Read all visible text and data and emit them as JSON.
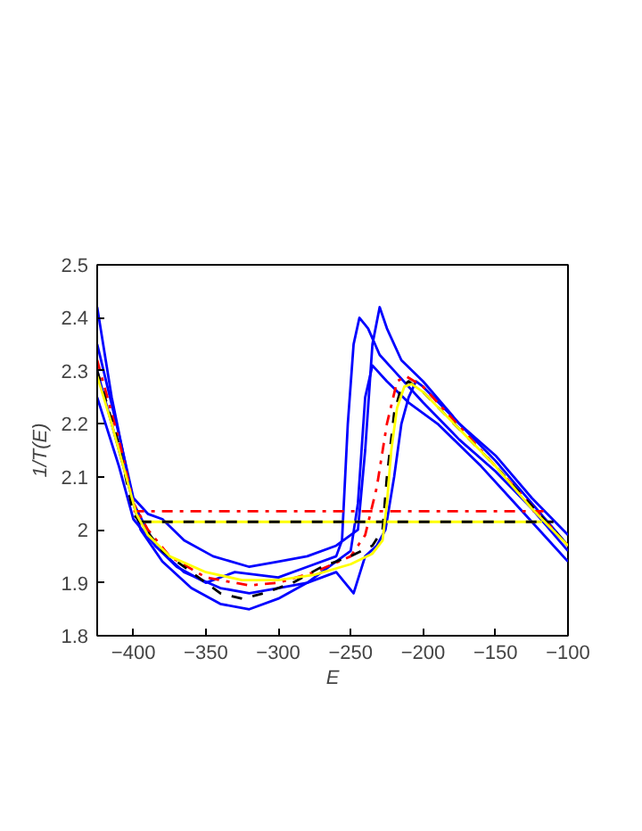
{
  "chart_data": {
    "type": "line",
    "xlabel": "E",
    "ylabel": "1/T(E)",
    "xlim": [
      -425,
      -100
    ],
    "ylim": [
      1.8,
      2.5
    ],
    "xticks": [
      {
        "value": -400,
        "label": "−400"
      },
      {
        "value": -350,
        "label": "−350"
      },
      {
        "value": -300,
        "label": "−300"
      },
      {
        "value": -250,
        "label": "−250"
      },
      {
        "value": -200,
        "label": "−200"
      },
      {
        "value": -150,
        "label": "−150"
      },
      {
        "value": -100,
        "label": "−100"
      }
    ],
    "yticks": [
      1.8,
      1.9,
      2,
      2.1,
      2.2,
      2.3,
      2.4,
      2.5
    ],
    "grid": false,
    "marker": "none",
    "series": [
      {
        "color": "#0000ff",
        "line_style": "solid",
        "x": [
          -425,
          -415,
          -400,
          -385,
          -370,
          -350,
          -330,
          -300,
          -280,
          -260,
          -256,
          -252,
          -248,
          -244,
          -238,
          -230,
          -220,
          -200,
          -175,
          -150,
          -125,
          -100
        ],
        "values": [
          2.42,
          2.25,
          2.05,
          1.97,
          1.93,
          1.9,
          1.92,
          1.91,
          1.93,
          1.95,
          1.98,
          2.2,
          2.35,
          2.4,
          2.38,
          2.33,
          2.3,
          2.24,
          2.17,
          2.11,
          2.04,
          1.96
        ]
      },
      {
        "color": "#0000ff",
        "line_style": "solid",
        "x": [
          -425,
          -410,
          -395,
          -380,
          -360,
          -340,
          -320,
          -300,
          -280,
          -260,
          -248,
          -240,
          -232,
          -226,
          -220,
          -215,
          -210,
          -205,
          -200,
          -175,
          -150,
          -125,
          -100
        ],
        "values": [
          2.3,
          2.15,
          2.0,
          1.94,
          1.89,
          1.86,
          1.85,
          1.87,
          1.9,
          1.92,
          1.88,
          1.95,
          1.97,
          2.0,
          2.1,
          2.2,
          2.25,
          2.28,
          2.27,
          2.2,
          2.13,
          2.05,
          1.97
        ]
      },
      {
        "color": "#0000ff",
        "line_style": "solid",
        "x": [
          -425,
          -410,
          -400,
          -390,
          -380,
          -365,
          -345,
          -320,
          -300,
          -280,
          -260,
          -245,
          -240,
          -235,
          -230,
          -225,
          -215,
          -200,
          -175,
          -150,
          -125,
          -100
        ],
        "values": [
          2.35,
          2.18,
          2.06,
          2.03,
          2.02,
          1.98,
          1.95,
          1.93,
          1.94,
          1.95,
          1.97,
          2.0,
          2.15,
          2.35,
          2.42,
          2.38,
          2.32,
          2.28,
          2.2,
          2.14,
          2.06,
          1.99
        ]
      },
      {
        "color": "#0000ff",
        "line_style": "solid",
        "x": [
          -425,
          -410,
          -400,
          -385,
          -365,
          -340,
          -320,
          -300,
          -280,
          -265,
          -250,
          -245,
          -240,
          -235,
          -225,
          -210,
          -190,
          -160,
          -130,
          -100
        ],
        "values": [
          2.25,
          2.12,
          2.02,
          1.97,
          1.92,
          1.89,
          1.88,
          1.89,
          1.9,
          1.93,
          1.96,
          2.05,
          2.25,
          2.31,
          2.28,
          2.24,
          2.2,
          2.12,
          2.03,
          1.94
        ]
      },
      {
        "color": "#ff0000",
        "line_style": "dashdot",
        "x": [
          -425,
          -410,
          -400,
          -390,
          -375,
          -350,
          -320,
          -300,
          -275,
          -250,
          -240,
          -232,
          -225,
          -218,
          -212,
          -200,
          -150,
          -100
        ],
        "values": [
          2.32,
          2.17,
          2.05,
          2.0,
          1.95,
          1.91,
          1.895,
          1.9,
          1.92,
          1.95,
          1.99,
          2.08,
          2.2,
          2.28,
          2.29,
          2.27,
          2.12,
          1.97
        ]
      },
      {
        "color": "#ff0000",
        "line_style": "dashdot",
        "x": [
          -400,
          -115
        ],
        "values": [
          2.035,
          2.035
        ]
      },
      {
        "color": "#000000",
        "line_style": "dashed",
        "x": [
          -425,
          -410,
          -400,
          -380,
          -360,
          -340,
          -325,
          -310,
          -290,
          -270,
          -250,
          -235,
          -228,
          -225,
          -220,
          -215,
          -210,
          -200,
          -150,
          -100
        ],
        "values": [
          2.3,
          2.16,
          2.03,
          1.96,
          1.92,
          1.88,
          1.87,
          1.88,
          1.9,
          1.93,
          1.95,
          1.97,
          2.0,
          2.1,
          2.22,
          2.27,
          2.28,
          2.26,
          2.12,
          1.97
        ]
      },
      {
        "color": "#ffff00",
        "line_style": "solid",
        "x": [
          -395,
          -118
        ],
        "values": [
          2.015,
          2.015
        ]
      },
      {
        "color": "#000000",
        "line_style": "dashed",
        "x": [
          -395,
          -110
        ],
        "values": [
          2.015,
          2.015
        ]
      },
      {
        "color": "#ffff00",
        "line_style": "solid",
        "x": [
          -425,
          -415,
          -405,
          -398,
          -390,
          -375,
          -350,
          -325,
          -300,
          -275,
          -250,
          -235,
          -228,
          -225,
          -222,
          -218,
          -213,
          -208,
          -200,
          -175,
          -150,
          -125,
          -100
        ],
        "values": [
          2.29,
          2.2,
          2.1,
          2.03,
          1.99,
          1.95,
          1.92,
          1.905,
          1.905,
          1.915,
          1.935,
          1.955,
          1.98,
          2.05,
          2.15,
          2.23,
          2.27,
          2.275,
          2.26,
          2.19,
          2.12,
          2.04,
          1.97
        ]
      }
    ]
  }
}
